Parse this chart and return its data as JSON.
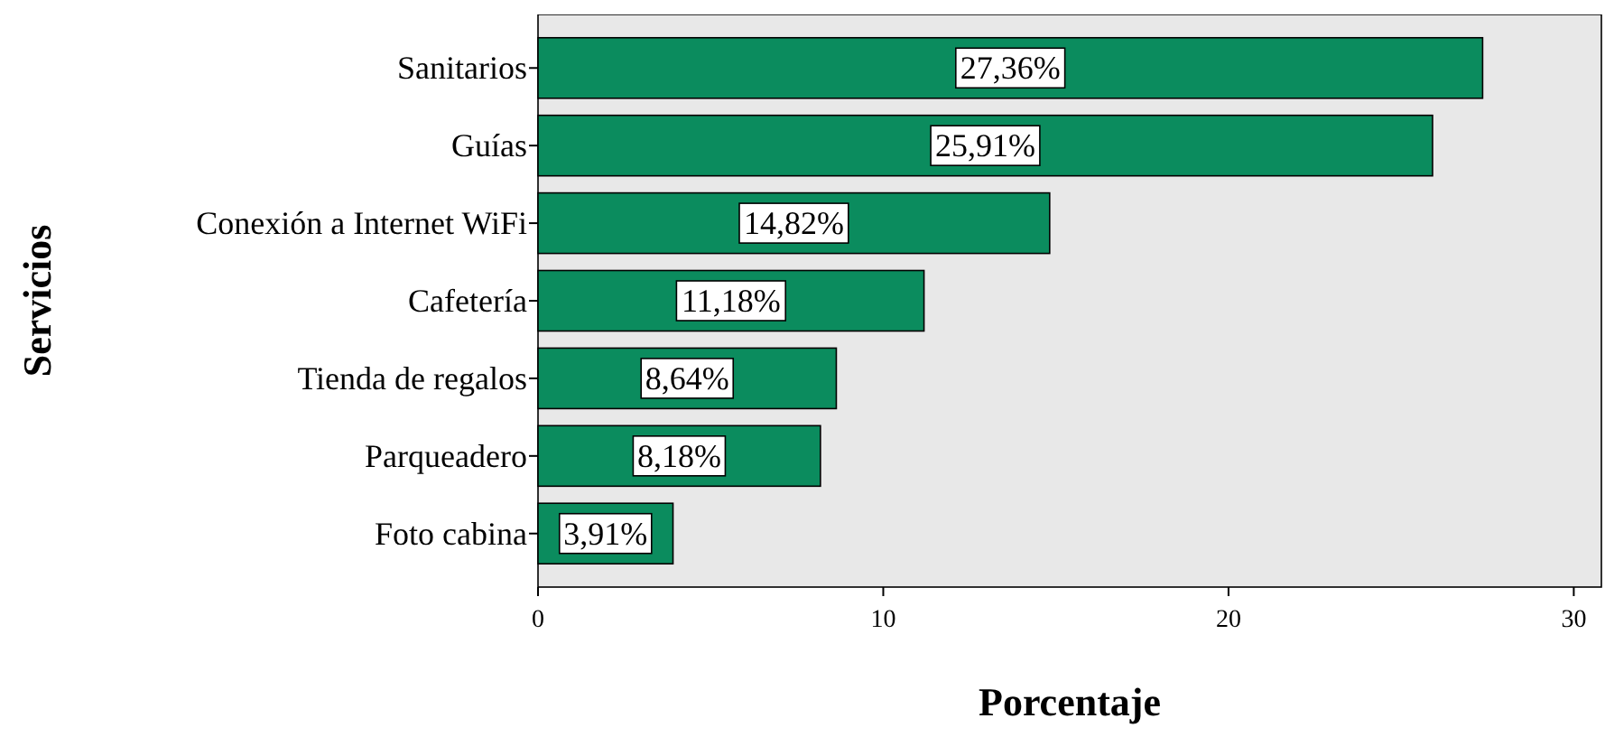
{
  "chart_data": {
    "type": "bar",
    "orientation": "horizontal",
    "xlabel": "Porcentaje",
    "ylabel": "Servicios",
    "categories": [
      "Sanitarios",
      "Guías",
      "Conexión a Internet WiFi",
      "Cafetería",
      "Tienda de regalos",
      "Parqueadero",
      "Foto cabina"
    ],
    "values": [
      27.36,
      25.91,
      14.82,
      11.18,
      8.64,
      8.18,
      3.91
    ],
    "value_labels": [
      "27,36%",
      "25,91%",
      "14,82%",
      "11,18%",
      "8,64%",
      "8,18%",
      "3,91%"
    ],
    "color": "#0b8c5e",
    "xlim": [
      0,
      30.8
    ],
    "xticks": [
      0,
      10,
      20,
      30
    ],
    "grid": false
  }
}
